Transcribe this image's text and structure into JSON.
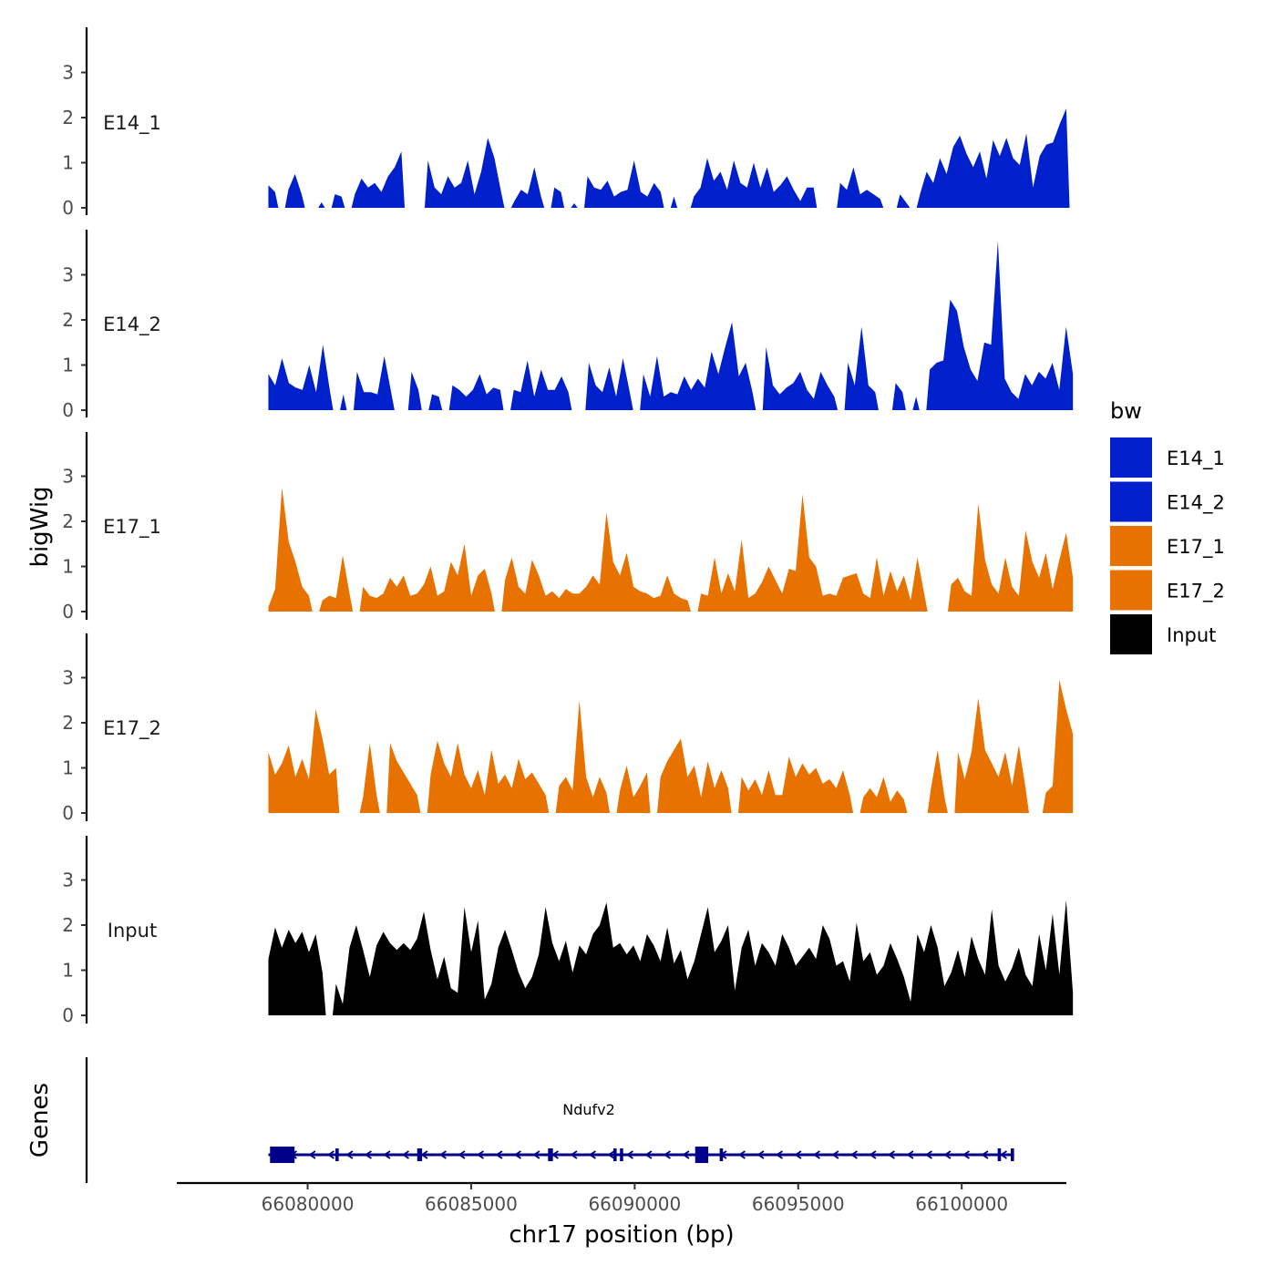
{
  "chart_data": {
    "type": "area",
    "chromosome": "chr17",
    "xlabel": "chr17 position (bp)",
    "ylabel": "bigWig",
    "genes_label": "Genes",
    "xlim": [
      66076000,
      66103200
    ],
    "x_ticks": [
      66080000,
      66085000,
      66090000,
      66095000,
      66100000
    ],
    "x_tick_labels": [
      "66080000",
      "66085000",
      "66090000",
      "66095000",
      "66100000"
    ],
    "ylim": [
      0,
      4
    ],
    "y_ticks": [
      0,
      1,
      2,
      3
    ],
    "y_tick_labels": [
      "0",
      "1",
      "2",
      "3"
    ],
    "legend": {
      "title": "bw",
      "placement": "right",
      "entries": [
        {
          "label": "E14_1",
          "color": "#0020CC"
        },
        {
          "label": "E14_2",
          "color": "#0020CC"
        },
        {
          "label": "E17_1",
          "color": "#E87200"
        },
        {
          "label": "E17_2",
          "color": "#E87200"
        },
        {
          "label": "Input",
          "color": "#000000"
        }
      ]
    },
    "series": [
      {
        "name": "E14_1",
        "color": "#0020CC",
        "start": 66078800,
        "end": 66103400,
        "values": [
          0.5,
          0.35,
          0.0,
          0.4,
          0.75,
          0.3,
          0.0,
          0.0,
          0.12,
          0.0,
          0.3,
          0.25,
          0.0,
          0.3,
          0.65,
          0.45,
          0.55,
          0.35,
          0.7,
          0.9,
          1.25,
          0.0,
          0.0,
          0.0,
          1.05,
          0.45,
          0.3,
          0.7,
          0.45,
          0.55,
          1.05,
          0.3,
          0.8,
          1.55,
          1.1,
          0.35,
          0.0,
          0.15,
          0.4,
          0.3,
          0.9,
          0.25,
          0.0,
          0.45,
          0.35,
          0.0,
          0.1,
          0.0,
          0.7,
          0.45,
          0.4,
          0.6,
          0.25,
          0.35,
          0.4,
          1.05,
          0.35,
          0.25,
          0.55,
          0.35,
          0.0,
          0.25,
          0.0,
          0.0,
          0.25,
          0.45,
          1.1,
          0.6,
          0.8,
          0.4,
          1.05,
          0.55,
          0.45,
          1.0,
          0.45,
          0.9,
          0.35,
          0.5,
          0.7,
          0.4,
          0.15,
          0.45,
          0.45,
          0.0,
          0.0,
          0.0,
          0.55,
          0.4,
          0.9,
          0.3,
          0.4,
          0.3,
          0.2,
          0.0,
          0.0,
          0.3,
          0.1,
          0.0,
          0.3,
          0.8,
          0.55,
          1.1,
          0.75,
          1.35,
          1.6,
          1.2,
          0.9,
          1.25,
          0.65,
          1.5,
          1.15,
          1.55,
          1.1,
          0.95,
          1.65,
          0.45,
          1.15,
          1.4,
          1.45,
          1.85,
          2.2,
          0.0
        ]
      },
      {
        "name": "E14_2",
        "color": "#0020CC",
        "start": 66078800,
        "end": 66103400,
        "values": [
          0.8,
          0.55,
          1.15,
          0.6,
          0.5,
          0.45,
          1.0,
          0.4,
          1.45,
          0.45,
          0.0,
          0.35,
          0.0,
          0.85,
          0.4,
          0.4,
          0.35,
          1.2,
          0.4,
          0.0,
          0.0,
          0.85,
          0.45,
          0.0,
          0.35,
          0.3,
          0.0,
          0.55,
          0.45,
          0.3,
          0.45,
          0.8,
          0.35,
          0.5,
          0.45,
          0.0,
          0.45,
          0.4,
          1.1,
          0.3,
          0.9,
          0.45,
          0.45,
          0.75,
          0.4,
          0.0,
          0.0,
          1.05,
          0.55,
          0.4,
          0.95,
          0.3,
          1.15,
          0.4,
          0.0,
          0.8,
          0.3,
          1.2,
          0.3,
          0.4,
          0.35,
          0.75,
          0.45,
          0.7,
          0.5,
          1.3,
          0.8,
          1.4,
          1.95,
          0.75,
          1.05,
          0.4,
          0.0,
          1.4,
          0.55,
          0.35,
          0.5,
          0.6,
          0.85,
          0.45,
          0.25,
          0.85,
          0.55,
          0.3,
          0.0,
          1.05,
          0.55,
          1.85,
          0.55,
          0.4,
          0.0,
          0.0,
          0.6,
          0.4,
          0.0,
          0.3,
          0.0,
          0.9,
          1.05,
          1.1,
          2.45,
          2.2,
          1.4,
          0.9,
          0.65,
          1.5,
          1.45,
          3.75,
          0.7,
          0.4,
          0.25,
          0.8,
          0.55,
          0.85,
          0.7,
          1.05,
          0.45,
          1.85,
          0.8
        ]
      },
      {
        "name": "E17_1",
        "color": "#E87200",
        "start": 66078800,
        "end": 66103400,
        "values": [
          0.1,
          0.5,
          2.75,
          1.55,
          1.1,
          0.55,
          0.35,
          0.0,
          0.25,
          0.35,
          0.3,
          1.25,
          0.4,
          0.0,
          0.55,
          0.35,
          0.3,
          0.4,
          0.75,
          0.55,
          0.8,
          0.35,
          0.4,
          0.6,
          1.0,
          0.35,
          0.45,
          1.1,
          0.8,
          1.5,
          0.35,
          0.8,
          0.95,
          0.4,
          0.0,
          0.7,
          1.2,
          0.55,
          0.4,
          1.15,
          0.8,
          0.35,
          0.45,
          0.3,
          0.5,
          0.4,
          0.4,
          0.55,
          0.8,
          0.6,
          2.2,
          1.1,
          0.8,
          1.3,
          0.55,
          0.45,
          0.4,
          0.3,
          0.35,
          0.8,
          0.4,
          0.3,
          0.25,
          0.0,
          0.4,
          0.35,
          1.2,
          0.4,
          0.85,
          0.45,
          1.6,
          0.3,
          0.4,
          0.65,
          1.0,
          0.7,
          0.4,
          0.95,
          0.9,
          2.6,
          1.2,
          1.0,
          0.35,
          0.4,
          0.35,
          0.75,
          0.8,
          0.85,
          0.4,
          0.3,
          1.2,
          0.35,
          0.9,
          0.45,
          0.8,
          0.25,
          1.2,
          0.4,
          0.0,
          0.0,
          0.0,
          0.6,
          0.75,
          0.45,
          0.35,
          2.4,
          1.15,
          0.6,
          0.4,
          1.2,
          0.55,
          0.35,
          1.8,
          1.1,
          0.75,
          1.3,
          0.5,
          1.15,
          1.75,
          0.75
        ]
      },
      {
        "name": "E17_2",
        "color": "#E87200",
        "start": 66078800,
        "end": 66103400,
        "values": [
          1.35,
          0.85,
          1.1,
          1.5,
          0.8,
          1.2,
          0.75,
          2.3,
          1.65,
          0.85,
          1.0,
          0.0,
          0.0,
          0.0,
          0.35,
          1.55,
          0.4,
          0.0,
          1.55,
          1.15,
          0.9,
          0.65,
          0.4,
          0.0,
          0.85,
          1.6,
          1.1,
          0.8,
          1.55,
          0.85,
          0.55,
          0.95,
          0.4,
          1.4,
          0.65,
          0.85,
          0.55,
          1.2,
          0.75,
          0.9,
          0.65,
          0.4,
          0.0,
          0.6,
          0.8,
          0.5,
          2.5,
          0.8,
          0.35,
          0.8,
          0.45,
          0.0,
          0.5,
          1.05,
          0.35,
          0.6,
          0.9,
          0.0,
          0.8,
          1.15,
          1.4,
          1.65,
          0.8,
          1.05,
          0.35,
          1.15,
          0.55,
          0.95,
          0.55,
          0.0,
          0.8,
          0.5,
          0.75,
          0.4,
          0.95,
          0.4,
          0.4,
          1.25,
          0.8,
          1.1,
          0.85,
          1.0,
          0.65,
          0.75,
          0.55,
          0.95,
          0.4,
          0.0,
          0.35,
          0.55,
          0.35,
          0.8,
          0.25,
          0.5,
          0.3,
          0.0,
          0.0,
          0.0,
          0.55,
          1.4,
          0.35,
          0.0,
          1.35,
          0.75,
          1.35,
          2.55,
          1.4,
          1.1,
          0.8,
          1.35,
          0.6,
          1.5,
          0.55,
          0.0,
          0.0,
          0.45,
          0.6,
          2.95,
          2.3,
          1.75
        ]
      },
      {
        "name": "Input",
        "color": "#000000",
        "start": 66078800,
        "end": 66103400,
        "values": [
          1.25,
          1.95,
          1.5,
          1.9,
          1.6,
          1.85,
          1.4,
          1.8,
          0.95,
          0.0,
          0.7,
          0.25,
          1.5,
          2.0,
          1.45,
          0.85,
          1.55,
          1.85,
          1.6,
          1.45,
          1.6,
          1.45,
          1.7,
          2.3,
          1.45,
          0.8,
          1.3,
          0.6,
          0.5,
          2.4,
          1.4,
          2.1,
          0.35,
          0.7,
          1.5,
          1.9,
          1.45,
          0.95,
          0.6,
          0.85,
          1.35,
          2.4,
          1.6,
          1.2,
          1.65,
          0.95,
          1.55,
          1.35,
          1.8,
          2.0,
          2.5,
          1.5,
          1.6,
          1.35,
          1.55,
          1.2,
          1.8,
          1.55,
          1.2,
          1.95,
          1.15,
          1.45,
          0.8,
          1.2,
          1.8,
          2.4,
          1.4,
          1.65,
          2.0,
          0.55,
          1.5,
          1.9,
          1.1,
          1.6,
          1.4,
          1.1,
          1.8,
          1.5,
          1.1,
          1.3,
          1.5,
          1.25,
          2.0,
          1.7,
          1.1,
          1.2,
          0.75,
          2.05,
          1.2,
          1.4,
          0.9,
          1.1,
          1.6,
          1.25,
          0.85,
          0.3,
          1.8,
          1.4,
          2.0,
          1.5,
          0.65,
          0.95,
          1.45,
          0.85,
          1.75,
          1.25,
          0.9,
          2.35,
          1.1,
          0.75,
          1.05,
          1.5,
          0.9,
          0.65,
          1.8,
          1.0,
          2.25,
          0.9,
          2.55,
          0.5
        ]
      }
    ],
    "genes": [
      {
        "name": "Ndufv2",
        "strand": "-",
        "start": 66078800,
        "end": 66101600,
        "color": "#00008B",
        "exons": [
          {
            "start": 66078850,
            "end": 66079600,
            "height": "tall"
          },
          {
            "start": 66080850,
            "end": 66080950,
            "height": "short"
          },
          {
            "start": 66083350,
            "end": 66083500,
            "height": "short"
          },
          {
            "start": 66087350,
            "end": 66087500,
            "height": "short"
          },
          {
            "start": 66089350,
            "end": 66089420,
            "height": "short"
          },
          {
            "start": 66089550,
            "end": 66089620,
            "height": "short"
          },
          {
            "start": 66091850,
            "end": 66092250,
            "height": "tall"
          },
          {
            "start": 66092600,
            "end": 66092700,
            "height": "short"
          },
          {
            "start": 66101100,
            "end": 66101200,
            "height": "short"
          },
          {
            "start": 66101500,
            "end": 66101600,
            "height": "short"
          }
        ]
      }
    ]
  }
}
